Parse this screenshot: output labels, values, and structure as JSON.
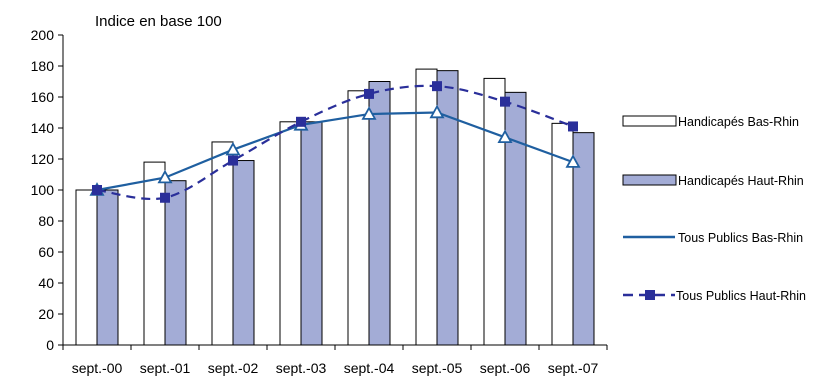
{
  "chart_data": {
    "type": "bar",
    "subtitle": "Indice en base 100",
    "categories": [
      "sept.-00",
      "sept.-01",
      "sept.-02",
      "sept.-03",
      "sept.-04",
      "sept.-05",
      "sept.-06",
      "sept.-07"
    ],
    "ylim": [
      0,
      200
    ],
    "yticks": [
      0,
      20,
      40,
      60,
      80,
      100,
      120,
      140,
      160,
      180,
      200
    ],
    "grid": false,
    "legend_position": "right",
    "series": [
      {
        "name": "Handicapés Bas-Rhin",
        "kind": "bar",
        "color": "#ffffff",
        "values": [
          100,
          118,
          131,
          144,
          164,
          178,
          172,
          143
        ]
      },
      {
        "name": "Handicapés Haut-Rhin",
        "kind": "bar",
        "color": "#a3acd6",
        "values": [
          100,
          106,
          119,
          144,
          170,
          177,
          163,
          137
        ]
      },
      {
        "name": "Tous Publics Bas-Rhin",
        "kind": "line",
        "color": "#1f5fa0",
        "marker": "open-triangle",
        "values": [
          100,
          108,
          126,
          142,
          149,
          150,
          134,
          118
        ]
      },
      {
        "name": "Tous Publics Haut-Rhin",
        "kind": "line",
        "color": "#2a2f9a",
        "dash": true,
        "marker": "square",
        "values": [
          100,
          95,
          119,
          144,
          162,
          167,
          157,
          141
        ]
      }
    ]
  }
}
